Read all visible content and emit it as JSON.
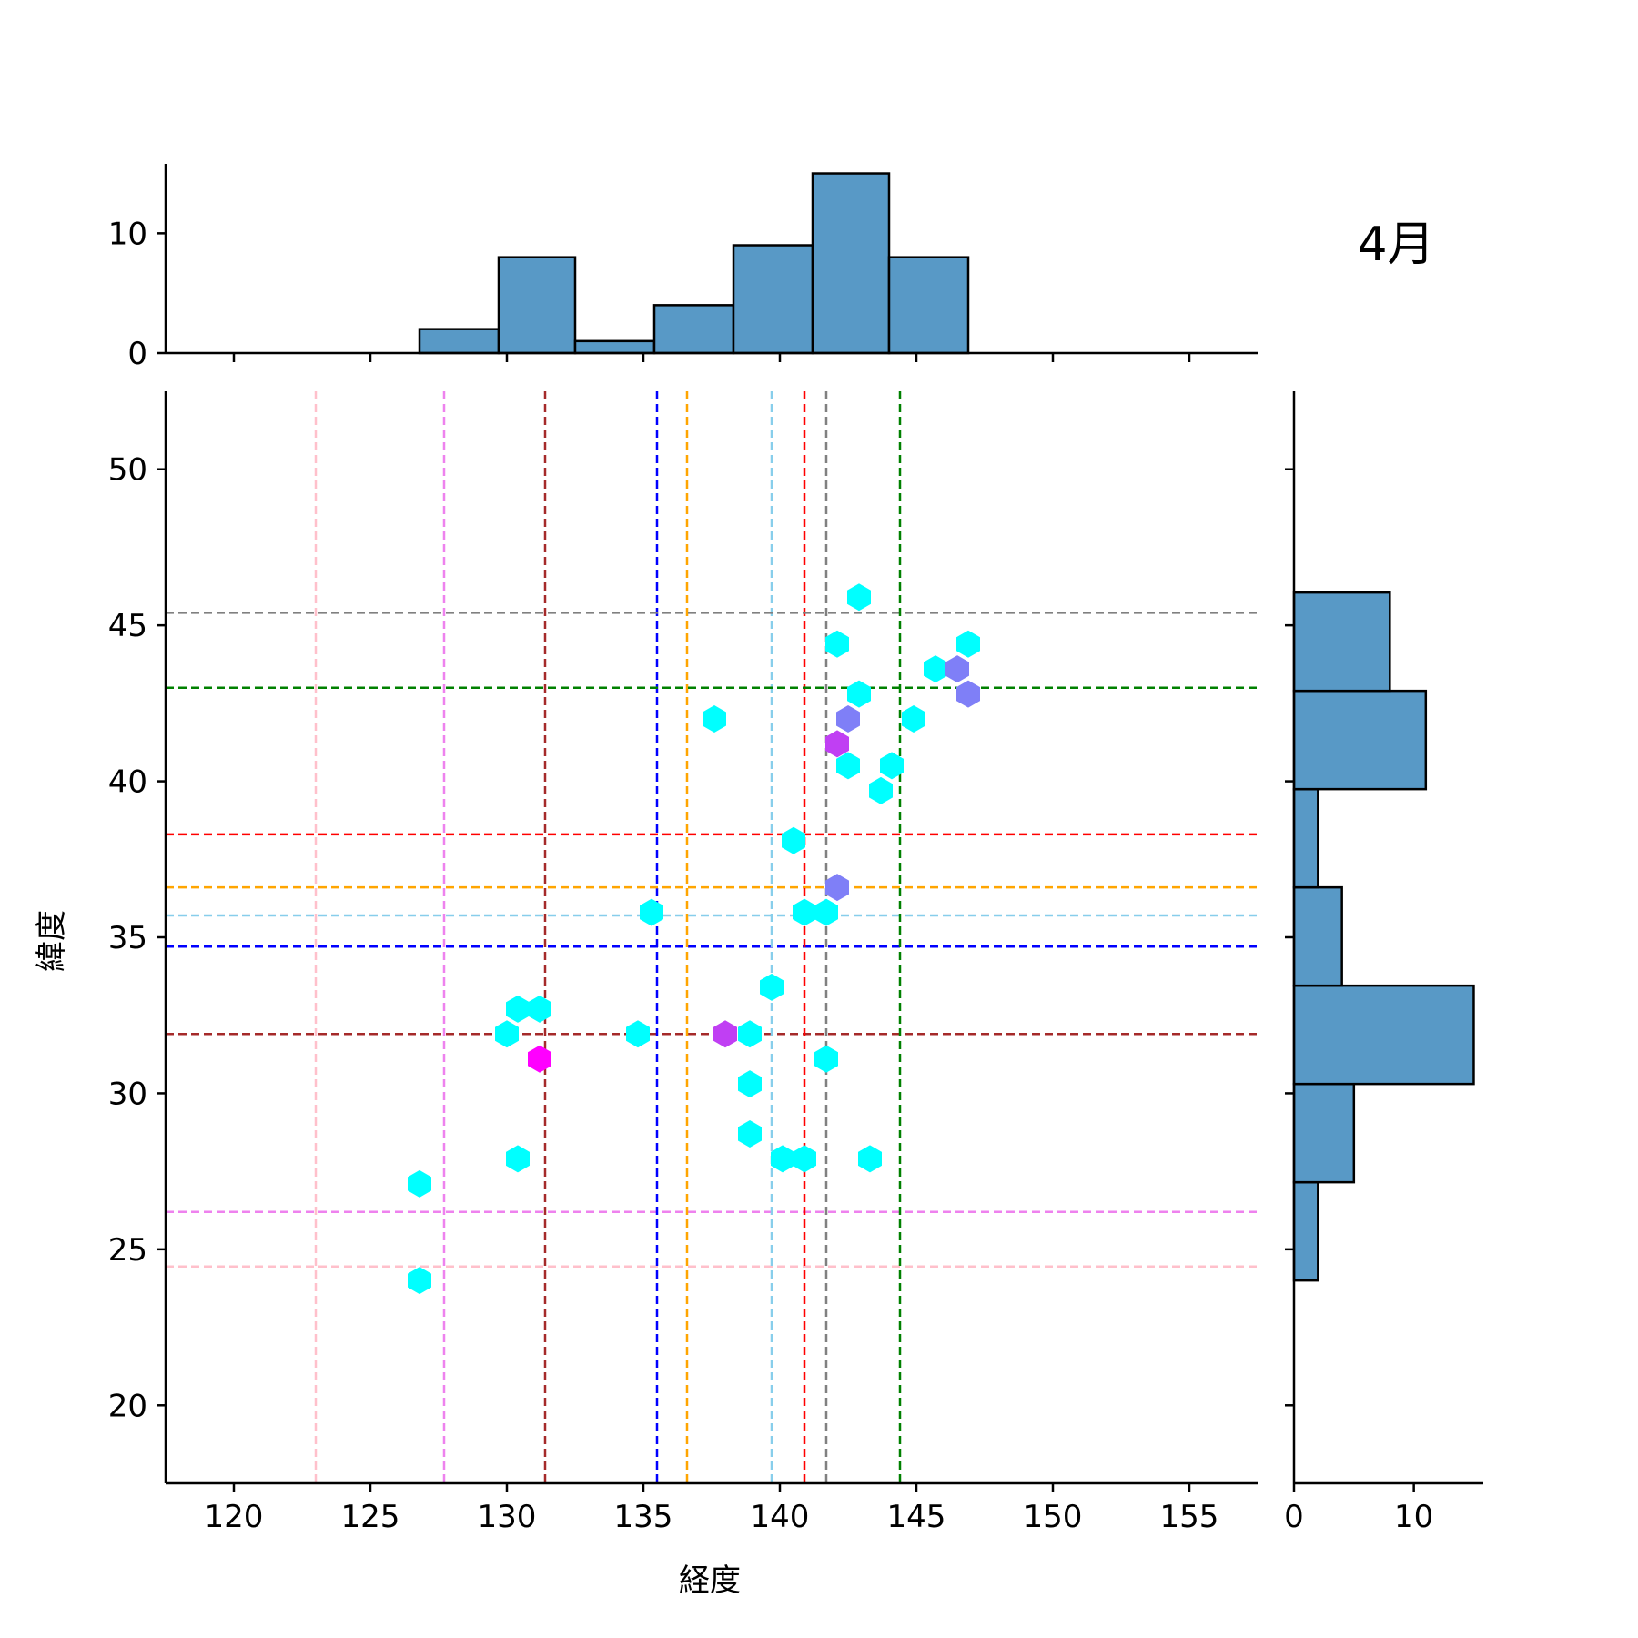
{
  "chart_data": {
    "type": "joint-hexbin",
    "annotation": "4月",
    "xlabel": "経度",
    "ylabel": "緯度",
    "xlim": [
      117.5,
      157.5
    ],
    "ylim": [
      17.5,
      52.5
    ],
    "x_ticks": [
      120,
      125,
      130,
      135,
      140,
      145,
      150,
      155
    ],
    "y_ticks": [
      20,
      25,
      30,
      35,
      40,
      45,
      50
    ],
    "reference_lines": [
      {
        "color": "#ffc0cb",
        "x": 123.0,
        "y": 24.45
      },
      {
        "color": "#ee82ee",
        "x": 127.7,
        "y": 26.2
      },
      {
        "color": "#a52a2a",
        "x": 131.4,
        "y": 31.9
      },
      {
        "color": "#0000ff",
        "x": 135.5,
        "y": 34.7
      },
      {
        "color": "#ffa500",
        "x": 136.6,
        "y": 36.6
      },
      {
        "color": "#87ceeb",
        "x": 139.7,
        "y": 35.7
      },
      {
        "color": "#ff0000",
        "x": 140.9,
        "y": 38.3
      },
      {
        "color": "#808080",
        "x": 141.7,
        "y": 45.4
      },
      {
        "color": "#008000",
        "x": 144.4,
        "y": 43.0
      }
    ],
    "hexbins": [
      {
        "x": 126.8,
        "y": 24.0,
        "count": 1
      },
      {
        "x": 126.8,
        "y": 27.1,
        "count": 1
      },
      {
        "x": 130.0,
        "y": 31.9,
        "count": 1
      },
      {
        "x": 130.4,
        "y": 32.7,
        "count": 1
      },
      {
        "x": 131.2,
        "y": 32.7,
        "count": 1
      },
      {
        "x": 131.2,
        "y": 31.1,
        "count": 4
      },
      {
        "x": 130.4,
        "y": 27.9,
        "count": 1
      },
      {
        "x": 134.8,
        "y": 31.9,
        "count": 1
      },
      {
        "x": 135.3,
        "y": 35.8,
        "count": 1
      },
      {
        "x": 137.6,
        "y": 42.0,
        "count": 1
      },
      {
        "x": 138.0,
        "y": 31.9,
        "count": 3
      },
      {
        "x": 138.9,
        "y": 31.9,
        "count": 1
      },
      {
        "x": 138.9,
        "y": 30.3,
        "count": 1
      },
      {
        "x": 138.9,
        "y": 28.7,
        "count": 1
      },
      {
        "x": 139.7,
        "y": 33.4,
        "count": 1
      },
      {
        "x": 140.1,
        "y": 27.9,
        "count": 1
      },
      {
        "x": 140.9,
        "y": 27.9,
        "count": 1
      },
      {
        "x": 140.5,
        "y": 38.1,
        "count": 1
      },
      {
        "x": 140.9,
        "y": 35.8,
        "count": 1
      },
      {
        "x": 141.7,
        "y": 35.8,
        "count": 1
      },
      {
        "x": 141.7,
        "y": 31.1,
        "count": 1
      },
      {
        "x": 142.1,
        "y": 36.6,
        "count": 2
      },
      {
        "x": 142.1,
        "y": 41.2,
        "count": 3
      },
      {
        "x": 142.5,
        "y": 42.0,
        "count": 2
      },
      {
        "x": 142.5,
        "y": 40.5,
        "count": 1
      },
      {
        "x": 142.1,
        "y": 44.4,
        "count": 1
      },
      {
        "x": 142.9,
        "y": 45.9,
        "count": 1
      },
      {
        "x": 142.9,
        "y": 42.8,
        "count": 1
      },
      {
        "x": 143.3,
        "y": 27.9,
        "count": 1
      },
      {
        "x": 143.7,
        "y": 39.7,
        "count": 1
      },
      {
        "x": 144.1,
        "y": 40.5,
        "count": 1
      },
      {
        "x": 144.9,
        "y": 42.0,
        "count": 1
      },
      {
        "x": 145.7,
        "y": 43.6,
        "count": 1
      },
      {
        "x": 146.5,
        "y": 43.6,
        "count": 2
      },
      {
        "x": 146.9,
        "y": 42.8,
        "count": 2
      },
      {
        "x": 146.9,
        "y": 44.4,
        "count": 1
      }
    ],
    "hex_colors": {
      "1": "#00ffff",
      "2": "#7f7ff7",
      "3": "#c03ff3",
      "4": "#ff00ff"
    },
    "x_hist": {
      "edges": [
        126.8,
        129.7,
        132.5,
        135.4,
        138.3,
        141.2,
        144.0,
        146.9
      ],
      "counts": [
        2,
        8,
        1,
        4,
        9,
        15,
        8
      ],
      "ticks": [
        0,
        10
      ],
      "ylim": [
        0,
        15.8
      ]
    },
    "y_hist": {
      "edges": [
        24.0,
        27.15,
        30.3,
        33.45,
        36.6,
        39.75,
        42.9,
        46.05
      ],
      "counts": [
        2,
        5,
        15,
        4,
        2,
        11,
        8
      ],
      "ticks": [
        0,
        10
      ],
      "xlim": [
        0,
        15.8
      ]
    },
    "bar_color": "#5899c6"
  }
}
